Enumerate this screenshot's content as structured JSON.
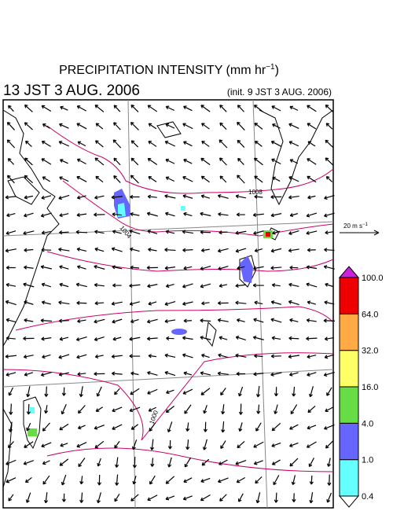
{
  "header": {
    "title": "PRECIPITATION INTENSITY (mm hr",
    "title_sup": "−1",
    "title_end": ")",
    "valid_time": "13 JST 3 AUG. 2006",
    "init_time": "(init. 9 JST 3 AUG. 2006)"
  },
  "vector_scale": {
    "label": "20 m s",
    "label_sup": "−1"
  },
  "colorbar": {
    "labels": [
      "0.4",
      "1.0",
      "4.0",
      "16.0",
      "32.0",
      "64.0",
      "100.0"
    ],
    "colors": [
      "#66ffff",
      "#6666ff",
      "#66dd44",
      "#ffff66",
      "#ffaa44",
      "#ee0000"
    ],
    "over_color": "#cc22dd",
    "under_color": "#ffffff"
  },
  "contour_labels": [
    "1008",
    "1004",
    "1000"
  ]
}
